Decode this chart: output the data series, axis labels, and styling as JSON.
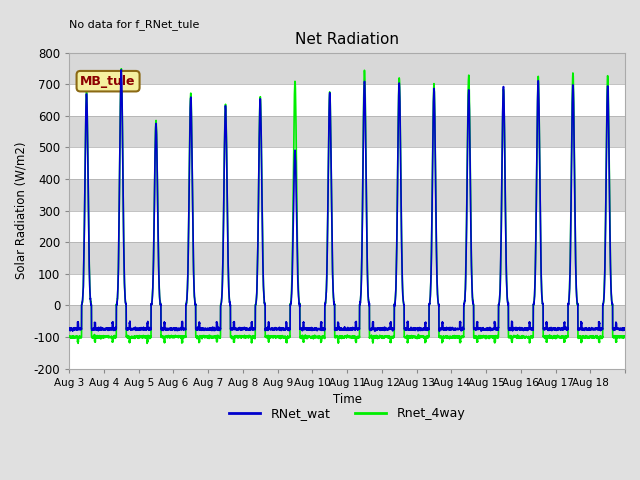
{
  "title": "Net Radiation",
  "xlabel": "Time",
  "ylabel": "Solar Radiation (W/m2)",
  "ylim": [
    -200,
    800
  ],
  "yticks": [
    -200,
    -100,
    0,
    100,
    200,
    300,
    400,
    500,
    600,
    700,
    800
  ],
  "no_data_text": "No data for f_RNet_tule",
  "mb_tule_label": "MB_tule",
  "legend_labels": [
    "RNet_wat",
    "Rnet_4way"
  ],
  "line_colors": [
    "#0000cc",
    "#00ee00"
  ],
  "bg_color": "#e0e0e0",
  "plot_bg_color": "#e8e8e8",
  "grid_color": "#ffffff",
  "alt_band_color": "#d8d8d8",
  "start_day": 3,
  "end_day": 18,
  "n_days": 16,
  "points_per_day": 288,
  "daily_peaks_green": [
    675,
    750,
    585,
    670,
    635,
    660,
    710,
    675,
    745,
    720,
    700,
    725,
    685,
    725,
    735,
    725
  ],
  "daily_peaks_blue": [
    670,
    745,
    575,
    660,
    630,
    655,
    490,
    670,
    710,
    705,
    685,
    680,
    695,
    710,
    700,
    695
  ],
  "night_val_green": -100,
  "night_val_blue": -75,
  "trough_green": -115,
  "trough_blue": -55
}
